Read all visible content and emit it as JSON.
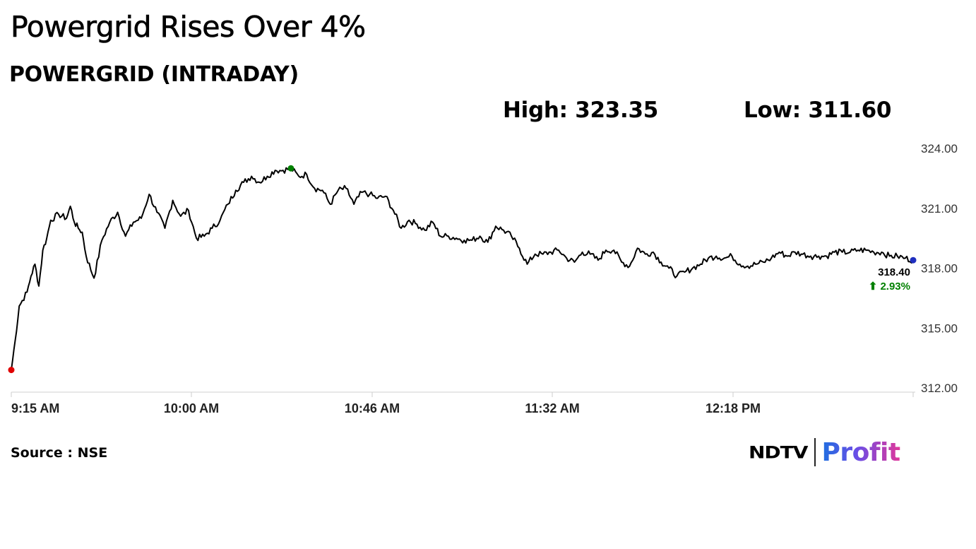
{
  "headline": "Powergrid Rises Over 4%",
  "subhead": "POWERGRID (INTRADAY)",
  "stats": {
    "high": "High: 323.35",
    "low": "Low: 311.60"
  },
  "source": "Source : NSE",
  "brand": {
    "ndtv": "NDTV",
    "profit": "Profit"
  },
  "colors": {
    "line": "#000000",
    "open_marker": "#e00000",
    "high_marker": "#008000",
    "last_marker": "#1f2fbf",
    "change_up": "#008000"
  },
  "chart_data": {
    "type": "line",
    "title": "POWERGRID (INTRADAY)",
    "ylim": [
      312,
      324
    ],
    "y_ticks": [
      "324.00",
      "321.00",
      "318.00",
      "315.00",
      "312.00"
    ],
    "x_ticks": [
      "9:15 AM",
      "10:00 AM",
      "10:46 AM",
      "11:32 AM",
      "12:18 PM"
    ],
    "x_range_minutes": [
      0,
      229
    ],
    "last_value_label": "318.40",
    "change_label": "⬆ 2.93%",
    "series": [
      {
        "x": [
          0,
          1,
          2,
          4,
          5,
          6,
          7,
          8,
          9,
          10,
          12,
          14,
          15,
          16,
          17,
          18,
          19,
          21,
          23,
          25,
          27,
          29,
          31,
          33,
          35,
          37,
          39,
          41,
          43,
          45,
          47,
          49,
          51,
          53,
          55,
          57,
          59,
          61,
          63,
          65,
          67,
          69,
          71,
          73,
          75,
          77,
          79,
          81,
          83,
          85,
          87,
          89,
          91,
          93,
          95,
          97,
          99,
          101,
          103,
          105,
          107,
          109,
          111,
          113,
          115,
          117,
          119,
          121,
          123,
          125,
          127,
          129,
          131,
          133,
          135,
          137,
          139,
          141,
          143,
          145,
          147,
          149,
          151,
          153,
          155,
          157,
          159,
          161,
          163,
          165,
          167,
          169,
          171,
          173,
          175,
          177,
          179,
          181,
          183,
          185,
          187,
          189,
          191,
          193,
          195,
          197,
          199,
          201,
          203,
          205,
          207,
          209,
          211,
          213,
          215,
          217,
          219,
          221,
          223,
          225,
          227,
          229
        ],
        "values": [
          312.9,
          314.4,
          316.1,
          316.8,
          317.6,
          318.2,
          317.1,
          318.9,
          319.5,
          320.4,
          320.7,
          320.5,
          321.1,
          320.3,
          320.0,
          319.8,
          318.6,
          317.5,
          319.4,
          320.3,
          320.8,
          319.6,
          320.3,
          320.5,
          321.7,
          320.8,
          320.0,
          321.4,
          320.6,
          320.9,
          319.5,
          319.6,
          320.0,
          320.4,
          321.2,
          321.9,
          322.3,
          322.6,
          322.3,
          322.6,
          322.9,
          322.9,
          323.0,
          322.6,
          322.7,
          322.0,
          321.9,
          321.2,
          321.9,
          322.0,
          321.2,
          321.8,
          321.7,
          321.5,
          321.6,
          320.9,
          320.0,
          320.4,
          320.2,
          319.9,
          320.3,
          319.6,
          319.6,
          319.5,
          319.4,
          319.4,
          319.6,
          319.3,
          320.1,
          319.9,
          319.6,
          319.0,
          318.2,
          318.7,
          318.7,
          318.8,
          318.9,
          318.5,
          318.3,
          318.8,
          318.7,
          318.4,
          318.9,
          318.9,
          318.3,
          318.1,
          319.0,
          318.7,
          318.8,
          318.3,
          318.0,
          317.6,
          317.8,
          318.0,
          318.2,
          318.5,
          318.6,
          318.5,
          318.6,
          318.2,
          318.1,
          318.2,
          318.3,
          318.5,
          318.8,
          318.6,
          318.8,
          318.7,
          318.6,
          318.6,
          318.6,
          318.8,
          318.8,
          318.8,
          318.9,
          318.9,
          318.8,
          318.8,
          318.6,
          318.6,
          318.5,
          318.4
        ]
      }
    ]
  }
}
